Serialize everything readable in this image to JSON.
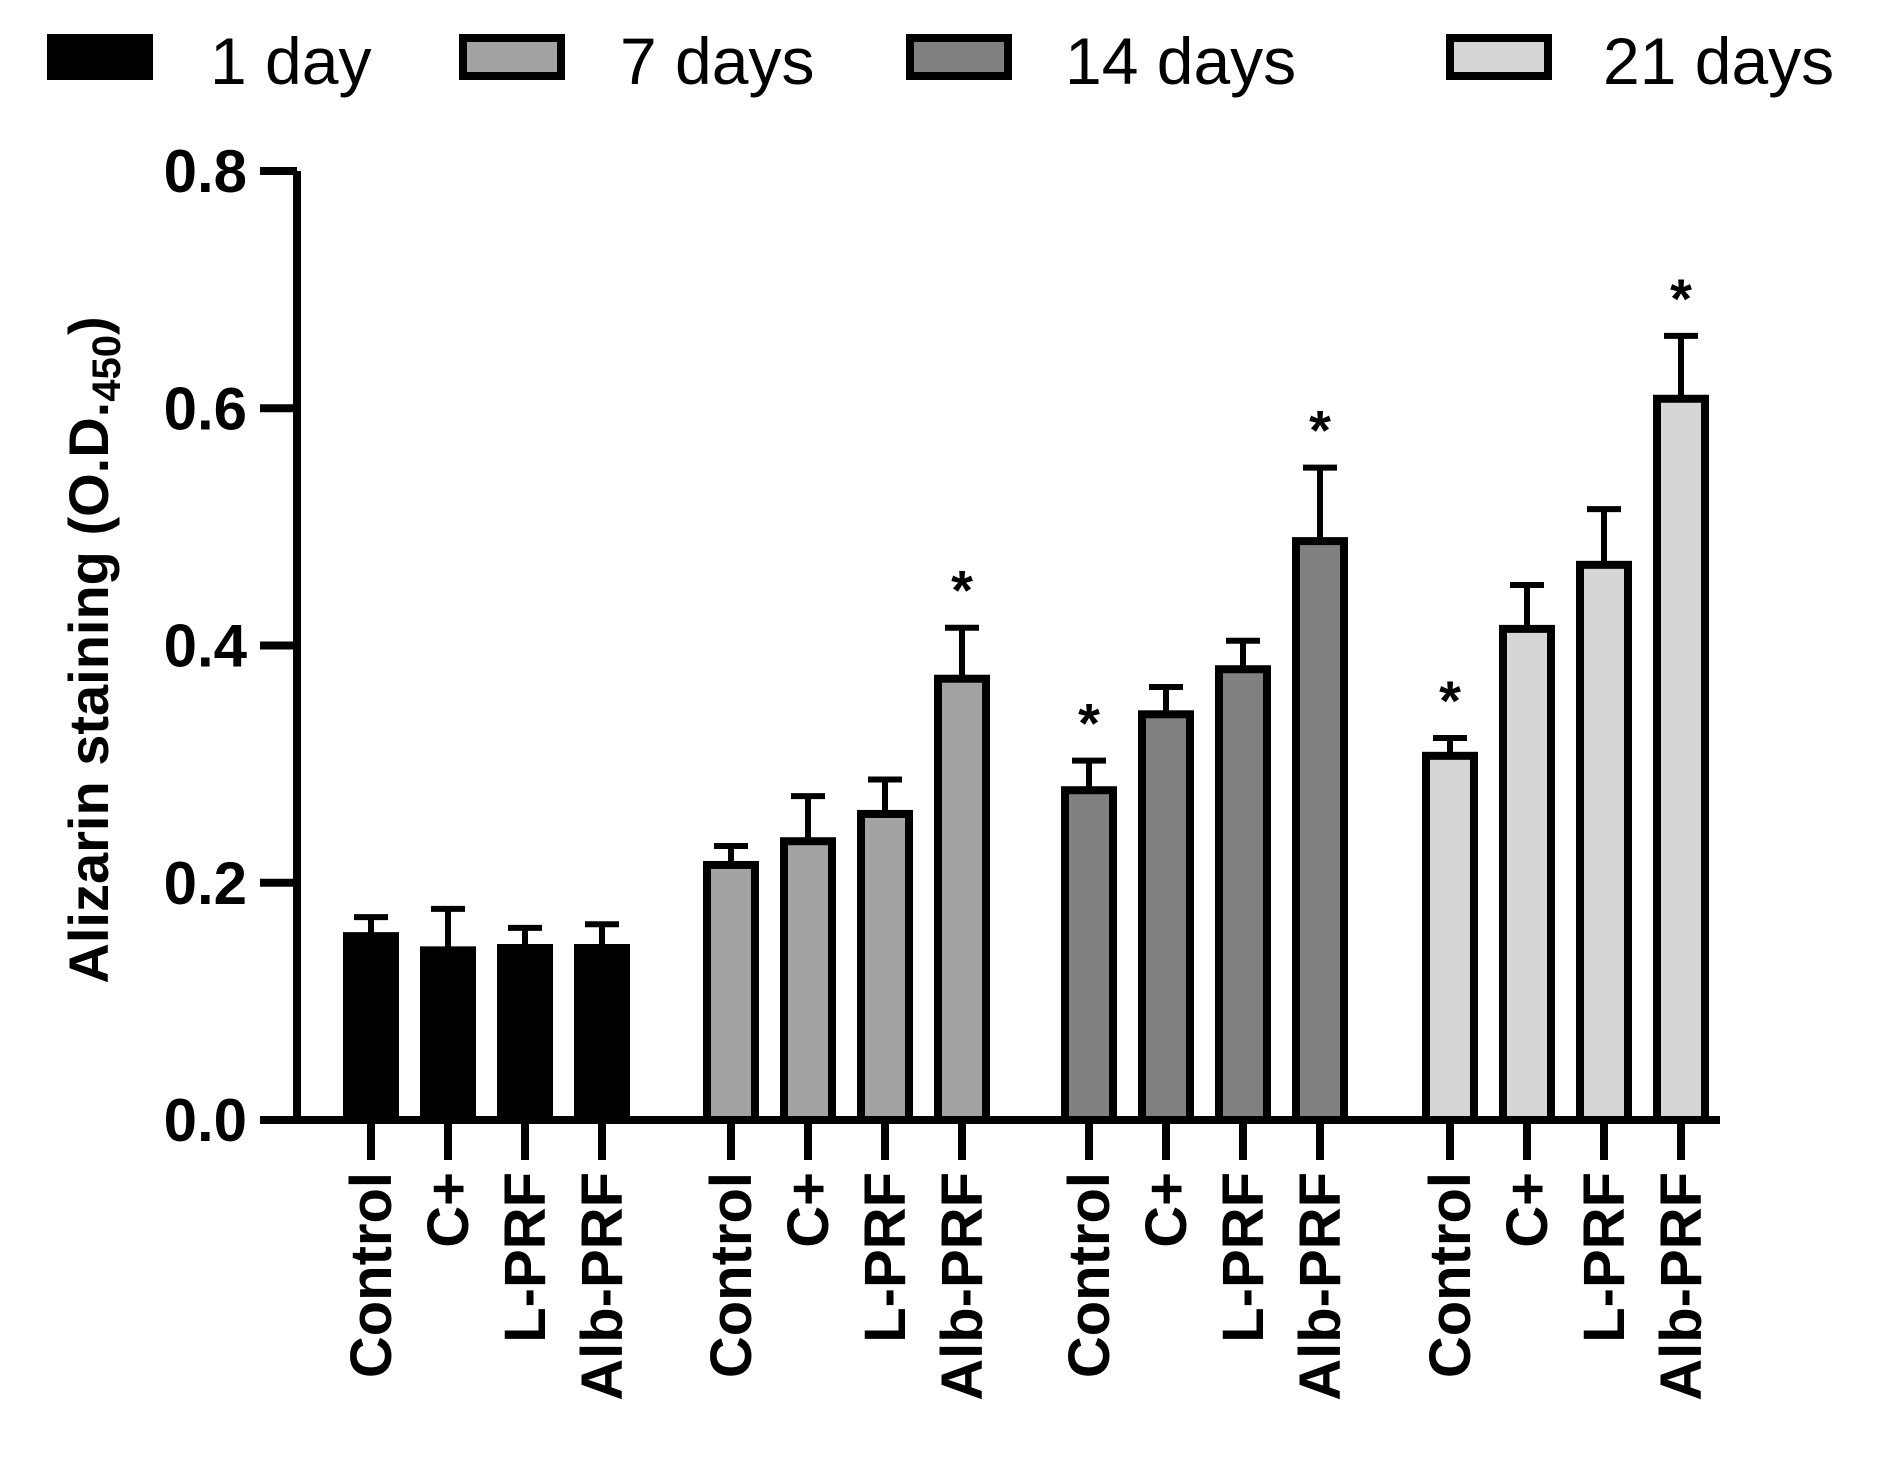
{
  "chart_data": {
    "type": "bar",
    "ylabel_main": "Alizarin staining (O.D.",
    "ylabel_sub": "450",
    "ylabel_close": ")",
    "ylim": [
      0,
      0.8
    ],
    "yticks": [
      "0.0",
      "0.2",
      "0.4",
      "0.6",
      "0.8"
    ],
    "ytick_values": [
      0,
      0.2,
      0.4,
      0.6,
      0.8
    ],
    "categories": [
      "Control",
      "C+",
      "L-PRF",
      "Alb-PRF"
    ],
    "legend_position": "top",
    "series": [
      {
        "name": "1 day",
        "color": "#000000",
        "values": [
          0.155,
          0.143,
          0.145,
          0.145
        ],
        "errors": [
          0.016,
          0.035,
          0.017,
          0.02
        ],
        "significant": [
          false,
          false,
          false,
          false
        ]
      },
      {
        "name": "7 days",
        "color": "#a3a3a6",
        "values": [
          0.215,
          0.235,
          0.258,
          0.372
        ],
        "errors": [
          0.016,
          0.038,
          0.029,
          0.043
        ],
        "significant": [
          false,
          false,
          false,
          true
        ]
      },
      {
        "name": "14 days",
        "color": "#808080",
        "values": [
          0.278,
          0.342,
          0.38,
          0.488
        ],
        "errors": [
          0.025,
          0.023,
          0.024,
          0.062
        ],
        "significant": [
          true,
          false,
          false,
          true
        ]
      },
      {
        "name": "21 days",
        "color": "#d6d6d6",
        "values": [
          0.307,
          0.414,
          0.468,
          0.608
        ],
        "errors": [
          0.015,
          0.037,
          0.047,
          0.053
        ],
        "significant": [
          true,
          false,
          false,
          true
        ]
      }
    ],
    "significance_marker": "*"
  }
}
